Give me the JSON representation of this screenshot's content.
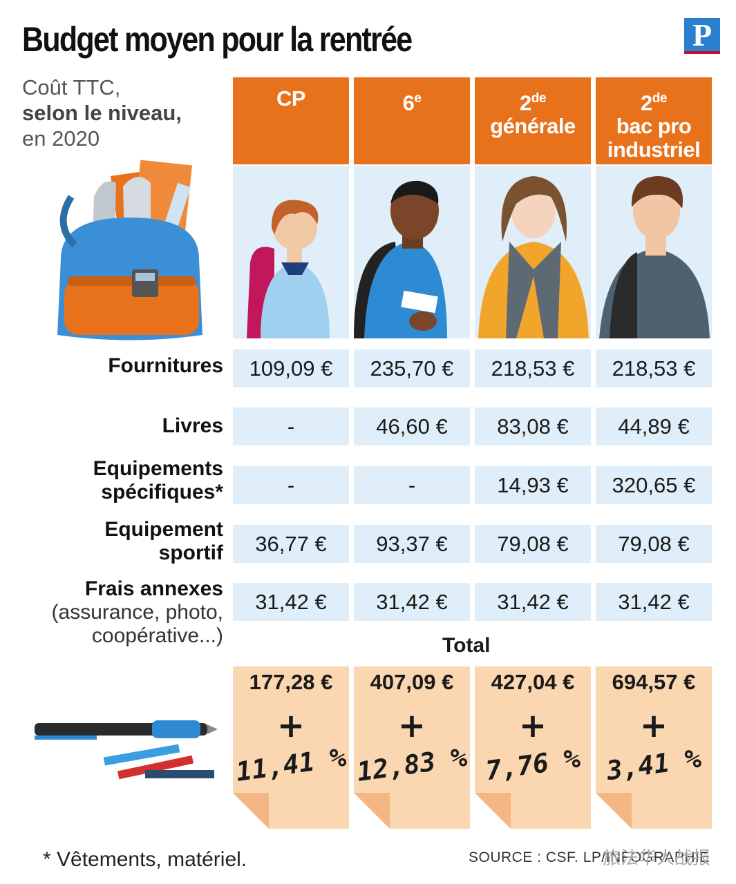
{
  "title": "Budget moyen pour la rentrée",
  "logo_letter": "P",
  "subtitle": {
    "line1": "Coût TTC,",
    "line2": "selon le niveau,",
    "line3": "en 2020"
  },
  "chart_data": {
    "type": "table",
    "columns": [
      {
        "name": "CP",
        "sup": "",
        "lines": [
          "CP"
        ]
      },
      {
        "name": "6e",
        "sup": "e",
        "lines": [
          "6"
        ]
      },
      {
        "name": "2de générale",
        "sup": "de",
        "lines": [
          "2",
          "générale"
        ]
      },
      {
        "name": "2de bac pro industriel",
        "sup": "de",
        "lines": [
          "2",
          "bac pro",
          "industriel"
        ]
      }
    ],
    "rows": [
      {
        "label": "Fournitures",
        "values": [
          "109,09 €",
          "235,70 €",
          "218,53 €",
          "218,53 €"
        ]
      },
      {
        "label": "Livres",
        "values": [
          "-",
          "46,60 €",
          "83,08 €",
          "44,89 €"
        ]
      },
      {
        "label_lines": [
          "Equipements",
          "spécifiques*"
        ],
        "values": [
          "-",
          "-",
          "14,93 €",
          "320,65 €"
        ]
      },
      {
        "label_lines": [
          "Equipement",
          "sportif"
        ],
        "values": [
          "36,77 €",
          "93,37 €",
          "79,08 €",
          "79,08 €"
        ]
      },
      {
        "label": "Frais annexes",
        "sub_lines": [
          "(assurance, photo,",
          "coopérative...)"
        ],
        "values": [
          "31,42 €",
          "31,42 €",
          "31,42 €",
          "31,42 €"
        ]
      }
    ],
    "total_label": "Total",
    "totals": [
      "177,28 €",
      "407,09 €",
      "427,04 €",
      "694,57 €"
    ],
    "plus_sign": "+",
    "change": [
      "11,41 %",
      "12,83 %",
      "7,76 %",
      "3,41 %"
    ]
  },
  "footnote": "* Vêtements, matériel.",
  "source": "SOURCE : CSF.   LP/INFOGRAPHIE",
  "watermark": "旅法华人战报",
  "colors": {
    "header": "#e8721c",
    "cell": "#dfeef8",
    "note": "#fbd7b1"
  }
}
